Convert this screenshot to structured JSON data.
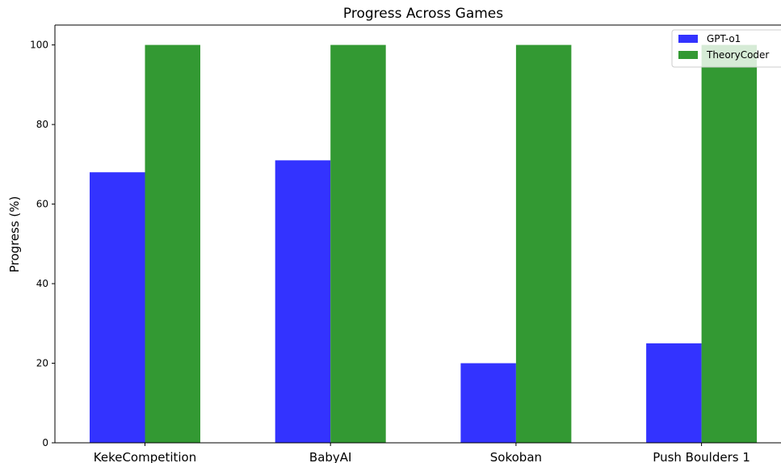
{
  "chart_data": {
    "type": "bar",
    "title": "Progress Across Games",
    "xlabel": "",
    "ylabel": "Progress (%)",
    "categories": [
      "KekeCompetition",
      "BabyAI",
      "Sokoban",
      "Push Boulders 1"
    ],
    "series": [
      {
        "name": "GPT-o1",
        "values": [
          68,
          71,
          20,
          25
        ],
        "color": "#3333ff"
      },
      {
        "name": "TheoryCoder",
        "values": [
          100,
          100,
          100,
          100
        ],
        "color": "#339933"
      }
    ],
    "ylim": [
      0,
      105
    ],
    "yticks": [
      0,
      20,
      40,
      60,
      80,
      100
    ],
    "legend_position": "top-right",
    "grid": false
  }
}
